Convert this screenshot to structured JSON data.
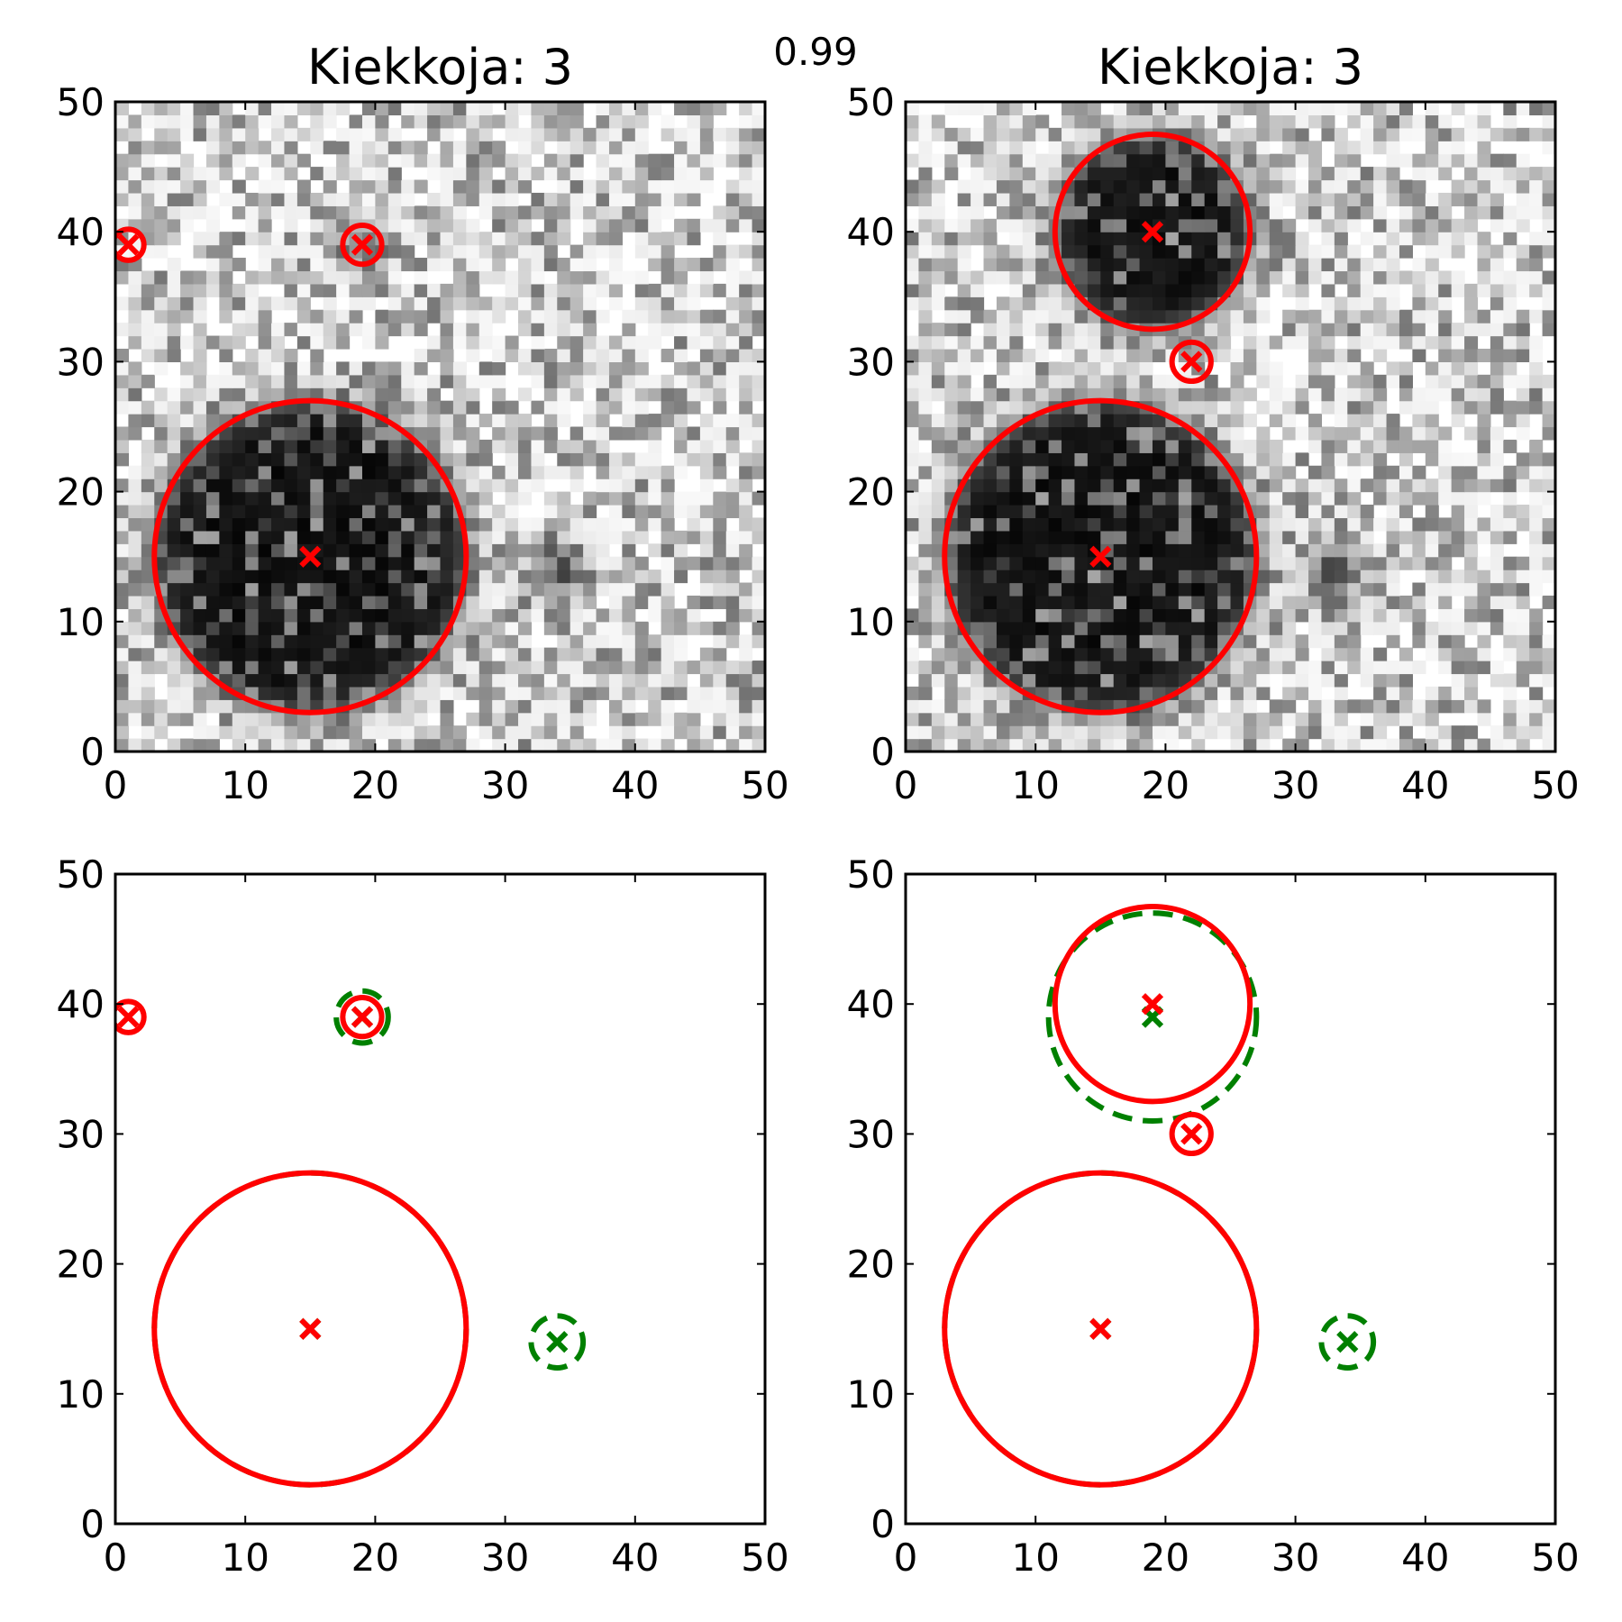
{
  "figure": {
    "suptitle": "0.99",
    "colors": {
      "estimate": "#ff0000",
      "truth": "#008000",
      "axis": "#000000"
    }
  },
  "chart_data": [
    {
      "type": "heatmap",
      "title": "Kiekkoja: 3",
      "xlim": [
        0,
        50
      ],
      "ylim": [
        0,
        50
      ],
      "xticks": [
        "0",
        "10",
        "20",
        "30",
        "40",
        "50"
      ],
      "yticks": [
        "0",
        "10",
        "20",
        "30",
        "40",
        "50"
      ],
      "background": "noisy-grayscale",
      "blobs": [
        {
          "x": 15,
          "y": 15,
          "r": 12,
          "strength": 1.0
        },
        {
          "x": 19,
          "y": 39,
          "r": 1.5,
          "strength": 0.6
        },
        {
          "x": 34,
          "y": 14,
          "r": 1.5,
          "strength": 0.8
        }
      ],
      "estimated_discs": [
        {
          "x": 1,
          "y": 39,
          "r": 1.2
        },
        {
          "x": 19,
          "y": 39,
          "r": 1.5
        },
        {
          "x": 15,
          "y": 15,
          "r": 12
        }
      ]
    },
    {
      "type": "heatmap",
      "title": "Kiekkoja: 3",
      "xlim": [
        0,
        50
      ],
      "ylim": [
        0,
        50
      ],
      "xticks": [
        "0",
        "10",
        "20",
        "30",
        "40",
        "50"
      ],
      "yticks": [
        "0",
        "10",
        "20",
        "30",
        "40",
        "50"
      ],
      "background": "noisy-grayscale",
      "blobs": [
        {
          "x": 15,
          "y": 15,
          "r": 12,
          "strength": 1.0
        },
        {
          "x": 19,
          "y": 40,
          "r": 7.5,
          "strength": 1.0
        },
        {
          "x": 33,
          "y": 14,
          "r": 1.5,
          "strength": 0.8
        }
      ],
      "estimated_discs": [
        {
          "x": 19,
          "y": 40,
          "r": 7.5
        },
        {
          "x": 22,
          "y": 30,
          "r": 1.5
        },
        {
          "x": 15,
          "y": 15,
          "r": 12
        }
      ]
    },
    {
      "type": "scatter",
      "title": "",
      "xlim": [
        0,
        50
      ],
      "ylim": [
        0,
        50
      ],
      "xticks": [
        "0",
        "10",
        "20",
        "30",
        "40",
        "50"
      ],
      "yticks": [
        "0",
        "10",
        "20",
        "30",
        "40",
        "50"
      ],
      "estimated_discs": [
        {
          "x": 1,
          "y": 39,
          "r": 1.2
        },
        {
          "x": 19,
          "y": 39,
          "r": 1.5
        },
        {
          "x": 15,
          "y": 15,
          "r": 12
        }
      ],
      "true_discs": [
        {
          "x": 19,
          "y": 39,
          "r": 2
        },
        {
          "x": 15,
          "y": 15,
          "r": 12
        },
        {
          "x": 34,
          "y": 14,
          "r": 2
        }
      ]
    },
    {
      "type": "scatter",
      "title": "",
      "xlim": [
        0,
        50
      ],
      "ylim": [
        0,
        50
      ],
      "xticks": [
        "0",
        "10",
        "20",
        "30",
        "40",
        "50"
      ],
      "yticks": [
        "0",
        "10",
        "20",
        "30",
        "40",
        "50"
      ],
      "estimated_discs": [
        {
          "x": 19,
          "y": 40,
          "r": 7.5
        },
        {
          "x": 22,
          "y": 30,
          "r": 1.5
        },
        {
          "x": 15,
          "y": 15,
          "r": 12
        }
      ],
      "true_discs": [
        {
          "x": 19,
          "y": 39,
          "r": 8
        },
        {
          "x": 15,
          "y": 15,
          "r": 12
        },
        {
          "x": 34,
          "y": 14,
          "r": 2
        }
      ]
    }
  ]
}
